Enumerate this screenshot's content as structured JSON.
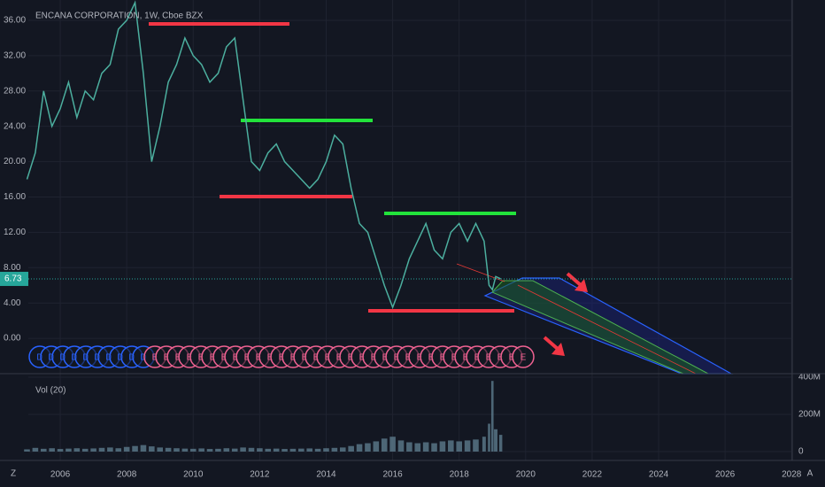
{
  "chart_data": {
    "type": "line",
    "title": "ENCANA CORPORATION, 1W, Cboe BZX",
    "color": "#4caf9f",
    "x": [
      2005.0,
      2005.25,
      2005.5,
      2005.75,
      2006.0,
      2006.25,
      2006.5,
      2006.75,
      2007.0,
      2007.25,
      2007.5,
      2007.75,
      2008.0,
      2008.25,
      2008.5,
      2008.75,
      2009.0,
      2009.25,
      2009.5,
      2009.75,
      2010.0,
      2010.25,
      2010.5,
      2010.75,
      2011.0,
      2011.25,
      2011.5,
      2011.75,
      2012.0,
      2012.25,
      2012.5,
      2012.75,
      2013.0,
      2013.25,
      2013.5,
      2013.75,
      2014.0,
      2014.25,
      2014.5,
      2014.75,
      2015.0,
      2015.25,
      2015.5,
      2015.75,
      2016.0,
      2016.25,
      2016.5,
      2016.75,
      2017.0,
      2017.25,
      2017.5,
      2017.75,
      2018.0,
      2018.25,
      2018.5,
      2018.75,
      2018.9,
      2019.0,
      2019.1,
      2019.25
    ],
    "values": [
      18,
      21,
      28,
      24,
      26,
      29,
      25,
      28,
      27,
      30,
      31,
      35,
      36,
      38,
      30,
      20,
      24,
      29,
      31,
      34,
      32,
      31,
      29,
      30,
      33,
      34,
      27,
      20,
      19,
      21,
      22,
      20,
      19,
      18,
      17,
      18,
      20,
      23,
      22,
      17,
      13,
      12,
      9,
      6,
      3.5,
      6,
      9,
      11,
      13,
      10,
      9,
      12,
      13,
      11,
      13,
      11,
      6,
      5.5,
      7,
      6.73
    ],
    "current_price": 6.73,
    "xlim": [
      2005.04,
      2028.02
    ],
    "xticks": [
      2006,
      2008,
      2010,
      2012,
      2014,
      2016,
      2018,
      2020,
      2022,
      2024,
      2026,
      2028
    ],
    "ylim": [
      -4.0,
      38.3
    ],
    "yticks": [
      {
        "value": 0,
        "label": "0.00"
      },
      {
        "value": 4,
        "label": "4.00"
      },
      {
        "value": 8,
        "label": "8.00"
      },
      {
        "value": 12,
        "label": "12.00"
      },
      {
        "value": 16,
        "label": "16.00"
      },
      {
        "value": 20,
        "label": "20.00"
      },
      {
        "value": 24,
        "label": "24.00"
      },
      {
        "value": 28,
        "label": "28.00"
      },
      {
        "value": 32,
        "label": "32.00"
      },
      {
        "value": 36,
        "label": "36.00"
      }
    ],
    "grid": true,
    "volume": {
      "name": "Vol (20)",
      "color": "#5d7a8c",
      "values": [
        12,
        20,
        15,
        18,
        14,
        16,
        18,
        15,
        17,
        20,
        22,
        18,
        25,
        30,
        35,
        28,
        22,
        20,
        18,
        16,
        15,
        17,
        14,
        15,
        18,
        16,
        22,
        20,
        18,
        15,
        16,
        14,
        15,
        16,
        17,
        15,
        18,
        20,
        22,
        30,
        40,
        45,
        55,
        70,
        80,
        60,
        50,
        45,
        50,
        45,
        55,
        60,
        55,
        60,
        65,
        80,
        150,
        380,
        120,
        90
      ],
      "ylim": [
        -47.6,
        419
      ],
      "yticks": [
        0,
        {
          "value": 200,
          "label": "200M"
        },
        {
          "value": 400,
          "label": "400M"
        }
      ]
    },
    "events": [
      "D",
      "D",
      "D",
      "D",
      "D",
      "D",
      "D",
      "D",
      "D",
      "D",
      "E",
      "E",
      "E",
      "E",
      "E",
      "E",
      "E",
      "E",
      "E",
      "E",
      "E",
      "E",
      "E",
      "E",
      "E",
      "E",
      "E",
      "E",
      "E",
      "E",
      "E",
      "E",
      "E",
      "E",
      "E",
      "E",
      "E",
      "E",
      "E",
      "E",
      "E",
      "E",
      "E"
    ],
    "event_colors": {
      "D": "#2962ff",
      "E": "#f06292"
    },
    "left_button": "Z",
    "right_button": "A"
  }
}
